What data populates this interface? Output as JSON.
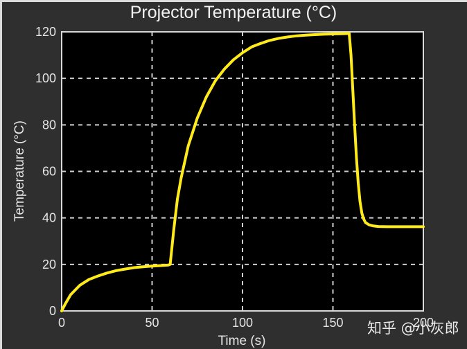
{
  "chart_data": {
    "type": "line",
    "title": "Projector Temperature (°C)",
    "xlabel": "Time (s)",
    "ylabel": "Temperature (°C)",
    "xlim": [
      0,
      200
    ],
    "ylim": [
      0,
      120
    ],
    "x_ticks": [
      0,
      50,
      100,
      150,
      200
    ],
    "y_ticks": [
      0,
      20,
      40,
      60,
      80,
      100,
      120
    ],
    "grid": true,
    "legend": null,
    "colors": {
      "background": "#000000",
      "figure": "#2f2f2f",
      "line": "#ffeb1a",
      "grid": "#cfcfcf",
      "text": "#e6e6e6"
    },
    "series": [
      {
        "name": "Projector Temperature",
        "x": [
          0,
          2,
          5,
          10,
          15,
          20,
          25,
          30,
          35,
          40,
          45,
          50,
          55,
          59,
          60,
          62,
          64,
          66,
          68,
          70,
          75,
          80,
          85,
          90,
          95,
          100,
          105,
          110,
          115,
          120,
          125,
          130,
          135,
          140,
          145,
          150,
          155,
          159,
          160,
          161,
          162,
          163,
          164,
          165,
          166,
          167,
          168,
          170,
          172,
          175,
          180,
          190,
          200
        ],
        "values": [
          0,
          3,
          7,
          11,
          13.5,
          15,
          16.3,
          17.3,
          18,
          18.6,
          19,
          19.3,
          19.5,
          19.7,
          20,
          35,
          48,
          57,
          64,
          71,
          83,
          92,
          99,
          104,
          108,
          111,
          113.5,
          115,
          116.3,
          117.2,
          117.8,
          118.3,
          118.6,
          118.8,
          119,
          119.1,
          119.2,
          119.3,
          110,
          95,
          80,
          66,
          55,
          47,
          42,
          39.5,
          38,
          37,
          36.6,
          36.3,
          36.2,
          36.2,
          36.2
        ]
      }
    ]
  },
  "labels": {
    "title": "Projector Temperature (°C)",
    "xlabel": "Time (s)",
    "ylabel": "Temperature (°C)",
    "x_ticks": [
      "0",
      "50",
      "100",
      "150",
      "200"
    ],
    "y_ticks": [
      "0",
      "20",
      "40",
      "60",
      "80",
      "100",
      "120"
    ]
  },
  "watermark": "知乎 @小灰郎"
}
